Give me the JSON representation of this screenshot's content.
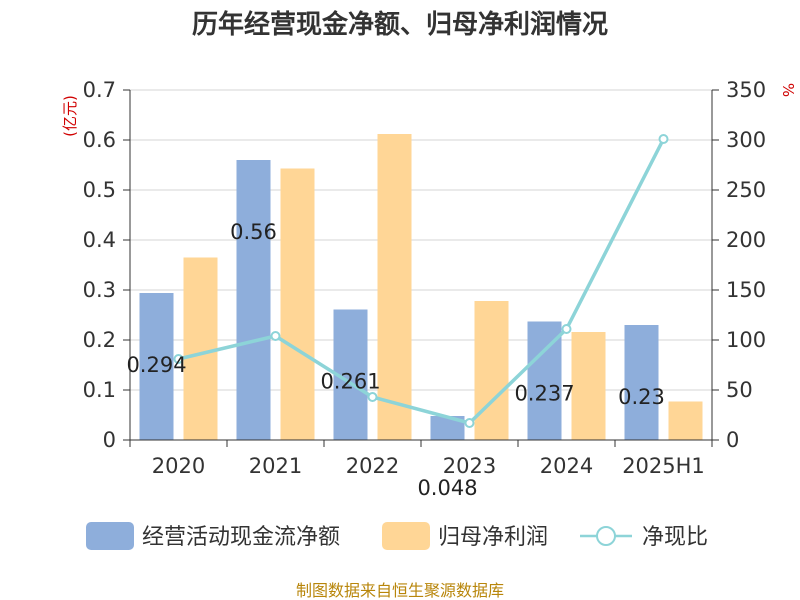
{
  "title": "历年经营现金净额、归母净利润情况",
  "source": "制图数据来自恒生聚源数据库",
  "chart_data": {
    "type": "bar",
    "title": "历年经营现金净额、归母净利润情况",
    "categories": [
      "2020",
      "2021",
      "2022",
      "2023",
      "2024",
      "2025H1"
    ],
    "left_axis": {
      "unit": "(亿元)",
      "ylim": [
        0,
        0.7
      ],
      "ticks": [
        "0",
        "0.1",
        "0.2",
        "0.3",
        "0.4",
        "0.5",
        "0.6",
        "0.7"
      ]
    },
    "right_axis": {
      "unit": "%",
      "ylim": [
        0,
        350
      ],
      "ticks": [
        "0",
        "50",
        "100",
        "150",
        "200",
        "250",
        "300",
        "350"
      ]
    },
    "series": [
      {
        "name": "经营活动现金流净额",
        "type": "bar",
        "axis": "left",
        "color": "#8eaedb",
        "values": [
          0.294,
          0.56,
          0.261,
          0.048,
          0.237,
          0.23
        ],
        "labels": [
          "0.294",
          "0.56",
          "0.261",
          "0.048",
          "0.237",
          "0.23"
        ]
      },
      {
        "name": "归母净利润",
        "type": "bar",
        "axis": "left",
        "color": "#ffd696",
        "values": [
          0.365,
          0.543,
          0.612,
          0.278,
          0.216,
          0.077
        ]
      },
      {
        "name": "净现比",
        "type": "line",
        "axis": "right",
        "color": "#8dd4d8",
        "values": [
          81,
          104,
          43,
          17,
          111,
          301
        ]
      }
    ],
    "grid": true,
    "legend_position": "bottom"
  }
}
